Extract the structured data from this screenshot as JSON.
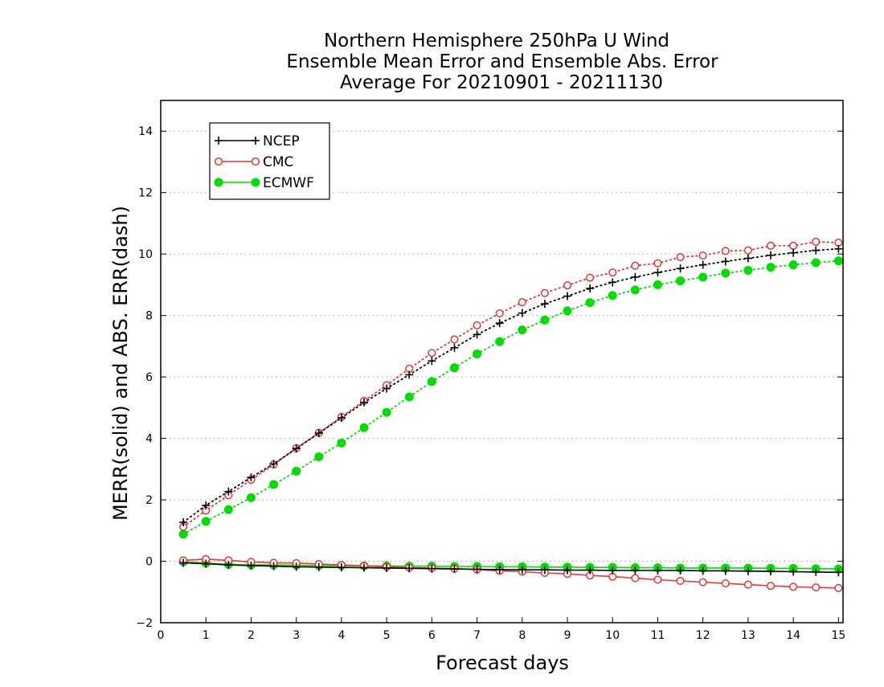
{
  "chart_data": {
    "type": "line",
    "title_lines": [
      "Northern Hemisphere 250hPa U Wind",
      "Ensemble Mean Error and Ensemble Abs. Error",
      "Average For 20210901 - 20211130"
    ],
    "xlabel": "Forecast days",
    "ylabel": "MERR(solid) and ABS. ERR(dash)",
    "xlim": [
      0,
      15.1
    ],
    "ylim": [
      -2,
      15
    ],
    "x_ticks": [
      0,
      1,
      2,
      3,
      4,
      5,
      6,
      7,
      8,
      9,
      10,
      11,
      12,
      13,
      14,
      15
    ],
    "y_ticks": [
      -2,
      0,
      2,
      4,
      6,
      8,
      10,
      12,
      14
    ],
    "grid": true,
    "legend_position": "top-left",
    "x": [
      0.5,
      1,
      1.5,
      2,
      2.5,
      3,
      3.5,
      4,
      4.5,
      5,
      5.5,
      6,
      6.5,
      7,
      7.5,
      8,
      8.5,
      9,
      9.5,
      10,
      10.5,
      11,
      11.5,
      12,
      12.5,
      13,
      13.5,
      14,
      14.5,
      15
    ],
    "series": [
      {
        "name": "NCEP",
        "color": "#000000",
        "marker": "plus",
        "abs_err": [
          1.27,
          1.82,
          2.27,
          2.73,
          3.17,
          3.67,
          4.17,
          4.67,
          5.17,
          5.62,
          6.07,
          6.52,
          6.95,
          7.38,
          7.75,
          8.08,
          8.38,
          8.63,
          8.88,
          9.08,
          9.25,
          9.4,
          9.53,
          9.65,
          9.76,
          9.86,
          9.96,
          10.04,
          10.12,
          10.17
        ],
        "mean_err": [
          -0.05,
          -0.08,
          -0.12,
          -0.14,
          -0.16,
          -0.18,
          -0.19,
          -0.2,
          -0.21,
          -0.22,
          -0.23,
          -0.24,
          -0.25,
          -0.26,
          -0.27,
          -0.28,
          -0.28,
          -0.29,
          -0.29,
          -0.3,
          -0.3,
          -0.3,
          -0.3,
          -0.31,
          -0.31,
          -0.32,
          -0.33,
          -0.34,
          -0.35,
          -0.36
        ]
      },
      {
        "name": "CMC",
        "color": "#ee3333",
        "marker": "open-circle",
        "abs_err": [
          1.12,
          1.65,
          2.15,
          2.65,
          3.15,
          3.68,
          4.18,
          4.7,
          5.22,
          5.73,
          6.27,
          6.78,
          7.22,
          7.68,
          8.07,
          8.43,
          8.73,
          8.98,
          9.23,
          9.4,
          9.62,
          9.7,
          9.9,
          9.95,
          10.1,
          10.12,
          10.27,
          10.27,
          10.4,
          10.37
        ],
        "mean_err": [
          0.03,
          0.07,
          0.03,
          -0.02,
          -0.05,
          -0.06,
          -0.09,
          -0.12,
          -0.15,
          -0.18,
          -0.21,
          -0.22,
          -0.24,
          -0.27,
          -0.31,
          -0.34,
          -0.38,
          -0.41,
          -0.46,
          -0.5,
          -0.55,
          -0.6,
          -0.64,
          -0.68,
          -0.72,
          -0.76,
          -0.8,
          -0.83,
          -0.85,
          -0.87
        ]
      },
      {
        "name": "ECMWF",
        "color": "#00dd00",
        "marker": "filled-circle",
        "abs_err": [
          0.88,
          1.3,
          1.68,
          2.07,
          2.5,
          2.93,
          3.4,
          3.85,
          4.35,
          4.85,
          5.35,
          5.85,
          6.3,
          6.75,
          7.15,
          7.53,
          7.85,
          8.15,
          8.42,
          8.65,
          8.83,
          9.0,
          9.13,
          9.25,
          9.38,
          9.47,
          9.57,
          9.65,
          9.72,
          9.78
        ],
        "mean_err": [
          -0.02,
          -0.06,
          -0.1,
          -0.12,
          -0.12,
          -0.13,
          -0.14,
          -0.14,
          -0.15,
          -0.15,
          -0.16,
          -0.16,
          -0.17,
          -0.17,
          -0.18,
          -0.18,
          -0.19,
          -0.19,
          -0.2,
          -0.2,
          -0.21,
          -0.21,
          -0.22,
          -0.22,
          -0.22,
          -0.22,
          -0.23,
          -0.23,
          -0.24,
          -0.25
        ]
      }
    ]
  }
}
